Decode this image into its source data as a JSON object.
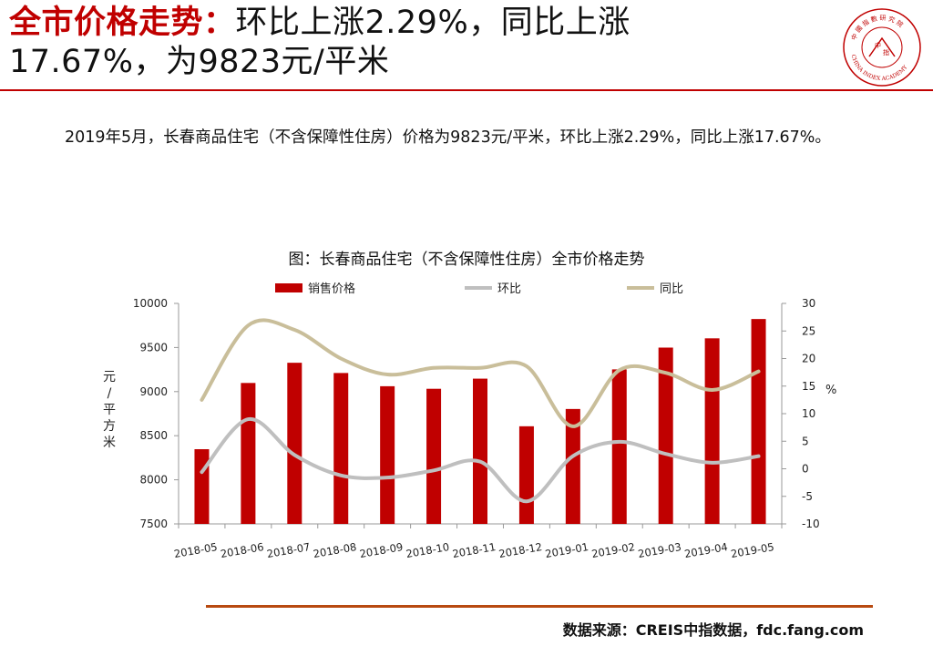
{
  "header": {
    "title_prefix": "全市价格走势：",
    "title_line1": "环比上涨2.29%，同比上涨",
    "title_line2": "17.67%，为9823元/平米",
    "logo_text_top": "中 國 指 數 研 究 院",
    "logo_text_bottom": "CHINA INDEX ACADEMY",
    "logo_center_1": "中",
    "logo_center_2": "指"
  },
  "paragraph": {
    "text": "2019年5月，长春商品住宅（不含保障性住房）价格为9823元/平米，环比上涨2.29%，同比上涨17.67%。"
  },
  "chart_title": "图：长春商品住宅（不含保障性住房）全市价格走势",
  "chart_data": {
    "type": "bar",
    "title": "图：长春商品住宅（不含保障性住房）全市价格走势",
    "categories": [
      "2018-05",
      "2018-06",
      "2018-07",
      "2018-08",
      "2018-09",
      "2018-10",
      "2018-11",
      "2018-12",
      "2019-01",
      "2019-02",
      "2019-03",
      "2019-04",
      "2019-05"
    ],
    "series": [
      {
        "name": "销售价格",
        "type": "bar",
        "axis": "left",
        "color": "#c00000",
        "values": [
          8347,
          9098,
          9327,
          9211,
          9061,
          9032,
          9147,
          8607,
          8803,
          9252,
          9499,
          9604,
          9823
        ]
      },
      {
        "name": "环比",
        "type": "line",
        "axis": "right",
        "color": "#bfbfbf",
        "values": [
          -0.6,
          9.0,
          2.5,
          -1.2,
          -1.6,
          -0.3,
          1.3,
          -5.9,
          2.3,
          4.9,
          2.7,
          1.1,
          2.29
        ]
      },
      {
        "name": "同比",
        "type": "line",
        "axis": "right",
        "color": "#c9be9a",
        "values": [
          12.5,
          26.0,
          25.2,
          20.0,
          17.1,
          18.3,
          18.3,
          18.6,
          7.7,
          17.9,
          17.4,
          14.3,
          17.67
        ]
      }
    ],
    "ylabel": "元/平方米",
    "y2label": "%",
    "ylim": [
      7500,
      10000
    ],
    "y2lim": [
      -10,
      30
    ],
    "yticks": [
      7500,
      8000,
      8500,
      9000,
      9500,
      10000
    ],
    "y2ticks": [
      -10,
      -5,
      0,
      5,
      10,
      15,
      20,
      25,
      30
    ],
    "legend": "top"
  },
  "footer": {
    "source": "数据来源：CREIS中指数据，fdc.fang.com"
  }
}
